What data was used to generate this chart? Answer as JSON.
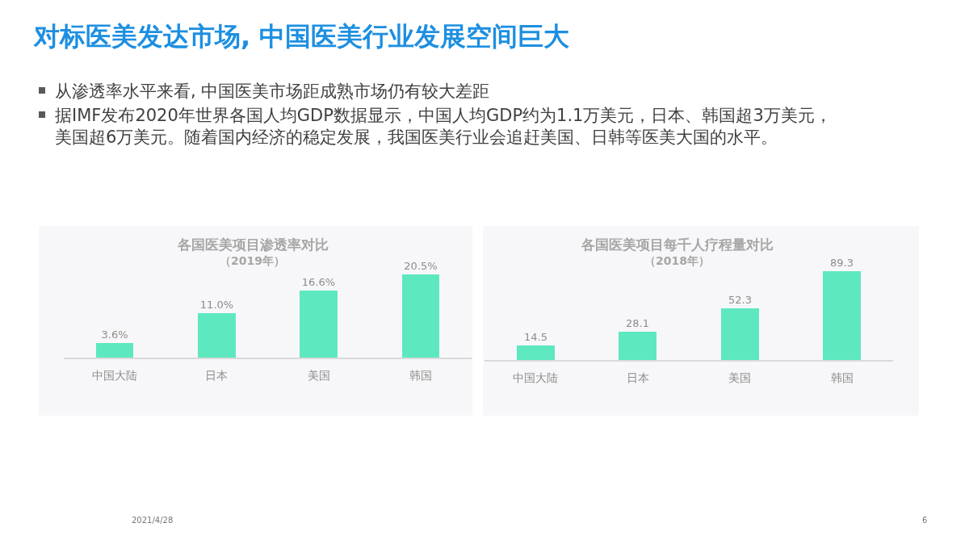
{
  "chart_data": [
    {
      "type": "other",
      "title": "对标医美发达市场, 中国医美行业发展空间巨大",
      "annotations": [
        "从渗透率水平来看, 中国医美市场距成熟市场仍有较大差距",
        "据IMF发布2020年世界各国人均GDP数据显示，中国人均GDP约为1.1万美元，日本、韩国超3万美元，美国超6万美元。随着国内经济的稳定发展，我国医美行业会追赶美国、日韩等医美大国的水平。"
      ]
    },
    {
      "type": "bar",
      "title": "各国医美项目渗透率对比",
      "subtitle": "（2019年）",
      "categories": [
        "中国大陆",
        "日本",
        "美国",
        "韩国"
      ],
      "values": [
        3.6,
        11.0,
        16.6,
        20.5
      ],
      "value_labels": [
        "3.6%",
        "11.0%",
        "16.6%",
        "20.5%"
      ],
      "color": "#5ee8c0"
    },
    {
      "type": "bar",
      "title": "各国医美项目每千人疗程量对比",
      "subtitle": "（2018年）",
      "categories": [
        "中国大陆",
        "日本",
        "美国",
        "韩国"
      ],
      "values": [
        14.5,
        28.1,
        52.3,
        89.3
      ],
      "data_labels": true,
      "color": "#5ee8c0"
    },
    {
      "type": "other",
      "annotations": [
        "2021/4/28",
        "6"
      ]
    }
  ]
}
